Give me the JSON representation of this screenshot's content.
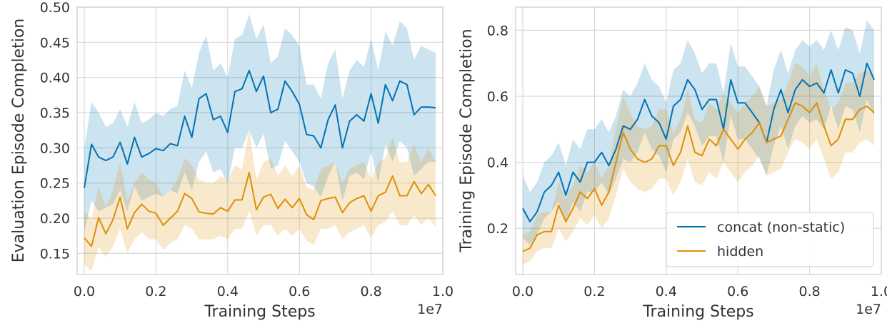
{
  "colors": {
    "concat": "#0173b2",
    "hidden": "#de8f05",
    "grid": "#d9d9d9",
    "axis": "#cccccc",
    "background": "#ffffff"
  },
  "chart_data": [
    {
      "type": "line",
      "xlabel": "Training Steps",
      "ylabel": "Evaluation Episode Completion",
      "x_multiplier": "1e7",
      "xlim": [
        -0.02,
        1.0
      ],
      "ylim": [
        0.12,
        0.5
      ],
      "grid": true,
      "xticks": [
        "0.0",
        "0.2",
        "0.4",
        "0.6",
        "0.8",
        "1.0"
      ],
      "yticks": [
        "0.15",
        "0.20",
        "0.25",
        "0.30",
        "0.35",
        "0.40",
        "0.45",
        "0.50"
      ],
      "x": [
        0.0,
        0.02,
        0.04,
        0.06,
        0.08,
        0.1,
        0.12,
        0.14,
        0.16,
        0.18,
        0.2,
        0.22,
        0.24,
        0.26,
        0.28,
        0.3,
        0.32,
        0.34,
        0.36,
        0.38,
        0.4,
        0.42,
        0.44,
        0.46,
        0.48,
        0.5,
        0.52,
        0.54,
        0.56,
        0.58,
        0.6,
        0.62,
        0.64,
        0.66,
        0.68,
        0.7,
        0.72,
        0.74,
        0.76,
        0.78,
        0.8,
        0.82,
        0.84,
        0.86,
        0.88,
        0.9,
        0.92,
        0.94,
        0.96,
        0.98
      ],
      "series": [
        {
          "name": "concat (non-static)",
          "color": "#0173b2",
          "values": [
            0.243,
            0.305,
            0.287,
            0.282,
            0.287,
            0.308,
            0.277,
            0.315,
            0.287,
            0.292,
            0.299,
            0.296,
            0.306,
            0.303,
            0.345,
            0.315,
            0.37,
            0.377,
            0.34,
            0.345,
            0.322,
            0.38,
            0.384,
            0.41,
            0.38,
            0.402,
            0.35,
            0.355,
            0.395,
            0.38,
            0.362,
            0.319,
            0.317,
            0.3,
            0.34,
            0.361,
            0.3,
            0.338,
            0.347,
            0.338,
            0.377,
            0.335,
            0.39,
            0.367,
            0.395,
            0.39,
            0.347,
            0.358,
            0.358,
            0.357
          ],
          "lower": [
            0.18,
            0.225,
            0.21,
            0.215,
            0.22,
            0.24,
            0.21,
            0.245,
            0.225,
            0.23,
            0.235,
            0.23,
            0.24,
            0.235,
            0.265,
            0.24,
            0.28,
            0.295,
            0.265,
            0.27,
            0.25,
            0.3,
            0.3,
            0.325,
            0.3,
            0.32,
            0.27,
            0.275,
            0.31,
            0.295,
            0.28,
            0.25,
            0.245,
            0.23,
            0.26,
            0.28,
            0.225,
            0.26,
            0.265,
            0.255,
            0.295,
            0.25,
            0.305,
            0.28,
            0.31,
            0.3,
            0.26,
            0.27,
            0.28,
            0.28
          ],
          "upper": [
            0.3,
            0.365,
            0.35,
            0.33,
            0.335,
            0.355,
            0.33,
            0.365,
            0.335,
            0.34,
            0.35,
            0.345,
            0.355,
            0.36,
            0.41,
            0.385,
            0.435,
            0.46,
            0.41,
            0.42,
            0.4,
            0.455,
            0.46,
            0.49,
            0.455,
            0.475,
            0.42,
            0.43,
            0.47,
            0.46,
            0.445,
            0.39,
            0.39,
            0.37,
            0.42,
            0.44,
            0.37,
            0.41,
            0.425,
            0.415,
            0.455,
            0.41,
            0.465,
            0.445,
            0.48,
            0.47,
            0.425,
            0.445,
            0.44,
            0.435
          ]
        },
        {
          "name": "hidden",
          "color": "#de8f05",
          "values": [
            0.172,
            0.16,
            0.201,
            0.178,
            0.198,
            0.23,
            0.185,
            0.208,
            0.22,
            0.21,
            0.207,
            0.19,
            0.2,
            0.21,
            0.235,
            0.228,
            0.209,
            0.207,
            0.206,
            0.215,
            0.21,
            0.226,
            0.226,
            0.265,
            0.212,
            0.23,
            0.234,
            0.214,
            0.227,
            0.215,
            0.228,
            0.205,
            0.198,
            0.225,
            0.228,
            0.23,
            0.208,
            0.222,
            0.228,
            0.232,
            0.21,
            0.232,
            0.237,
            0.26,
            0.232,
            0.232,
            0.252,
            0.235,
            0.248,
            0.232
          ],
          "lower": [
            0.135,
            0.125,
            0.16,
            0.145,
            0.16,
            0.185,
            0.15,
            0.17,
            0.18,
            0.17,
            0.17,
            0.155,
            0.165,
            0.17,
            0.19,
            0.185,
            0.17,
            0.17,
            0.17,
            0.175,
            0.17,
            0.185,
            0.185,
            0.21,
            0.175,
            0.19,
            0.19,
            0.175,
            0.185,
            0.175,
            0.185,
            0.168,
            0.162,
            0.185,
            0.185,
            0.19,
            0.17,
            0.18,
            0.185,
            0.19,
            0.172,
            0.19,
            0.195,
            0.21,
            0.19,
            0.19,
            0.205,
            0.19,
            0.2,
            0.188
          ],
          "upper": [
            0.21,
            0.2,
            0.245,
            0.215,
            0.24,
            0.28,
            0.225,
            0.25,
            0.265,
            0.255,
            0.25,
            0.23,
            0.24,
            0.255,
            0.285,
            0.275,
            0.255,
            0.25,
            0.25,
            0.26,
            0.255,
            0.275,
            0.27,
            0.325,
            0.255,
            0.28,
            0.285,
            0.26,
            0.275,
            0.26,
            0.275,
            0.245,
            0.24,
            0.27,
            0.275,
            0.28,
            0.25,
            0.27,
            0.275,
            0.28,
            0.255,
            0.28,
            0.285,
            0.315,
            0.28,
            0.28,
            0.305,
            0.28,
            0.3,
            0.28
          ]
        }
      ]
    },
    {
      "type": "line",
      "xlabel": "Training Steps",
      "ylabel": "Training Episode Completion",
      "x_multiplier": "1e7",
      "xlim": [
        -0.02,
        1.0
      ],
      "ylim": [
        0.06,
        0.87
      ],
      "grid": true,
      "legend_position": "bottom-right",
      "xticks": [
        "0.0",
        "0.2",
        "0.4",
        "0.6",
        "0.8",
        "1.0"
      ],
      "yticks": [
        "0.2",
        "0.4",
        "0.6",
        "0.8"
      ],
      "x": [
        0.0,
        0.02,
        0.04,
        0.06,
        0.08,
        0.1,
        0.12,
        0.14,
        0.16,
        0.18,
        0.2,
        0.22,
        0.24,
        0.26,
        0.28,
        0.3,
        0.32,
        0.34,
        0.36,
        0.38,
        0.4,
        0.42,
        0.44,
        0.46,
        0.48,
        0.5,
        0.52,
        0.54,
        0.56,
        0.58,
        0.6,
        0.62,
        0.64,
        0.66,
        0.68,
        0.7,
        0.72,
        0.74,
        0.76,
        0.78,
        0.8,
        0.82,
        0.84,
        0.86,
        0.88,
        0.9,
        0.92,
        0.94,
        0.96,
        0.98
      ],
      "series": [
        {
          "name": "concat (non-static)",
          "color": "#0173b2",
          "values": [
            0.26,
            0.22,
            0.25,
            0.31,
            0.33,
            0.37,
            0.3,
            0.37,
            0.34,
            0.4,
            0.4,
            0.43,
            0.39,
            0.44,
            0.51,
            0.5,
            0.53,
            0.59,
            0.54,
            0.52,
            0.47,
            0.57,
            0.59,
            0.65,
            0.62,
            0.56,
            0.59,
            0.59,
            0.5,
            0.65,
            0.58,
            0.58,
            0.55,
            0.52,
            0.46,
            0.56,
            0.62,
            0.55,
            0.62,
            0.65,
            0.63,
            0.64,
            0.61,
            0.68,
            0.61,
            0.68,
            0.67,
            0.6,
            0.7,
            0.65
          ],
          "lower": [
            0.17,
            0.15,
            0.18,
            0.23,
            0.25,
            0.28,
            0.22,
            0.28,
            0.25,
            0.31,
            0.31,
            0.34,
            0.3,
            0.35,
            0.41,
            0.4,
            0.43,
            0.49,
            0.44,
            0.42,
            0.37,
            0.47,
            0.49,
            0.55,
            0.51,
            0.45,
            0.48,
            0.48,
            0.4,
            0.54,
            0.47,
            0.47,
            0.44,
            0.41,
            0.36,
            0.45,
            0.51,
            0.44,
            0.51,
            0.54,
            0.52,
            0.53,
            0.5,
            0.57,
            0.5,
            0.57,
            0.56,
            0.49,
            0.59,
            0.54
          ],
          "upper": [
            0.36,
            0.31,
            0.34,
            0.4,
            0.42,
            0.46,
            0.39,
            0.47,
            0.44,
            0.5,
            0.5,
            0.53,
            0.49,
            0.54,
            0.62,
            0.6,
            0.64,
            0.7,
            0.65,
            0.63,
            0.58,
            0.68,
            0.7,
            0.77,
            0.73,
            0.67,
            0.7,
            0.7,
            0.61,
            0.76,
            0.69,
            0.69,
            0.66,
            0.63,
            0.57,
            0.68,
            0.74,
            0.67,
            0.74,
            0.77,
            0.75,
            0.77,
            0.74,
            0.8,
            0.74,
            0.81,
            0.8,
            0.73,
            0.83,
            0.8
          ]
        },
        {
          "name": "hidden",
          "color": "#de8f05",
          "values": [
            0.13,
            0.14,
            0.18,
            0.19,
            0.19,
            0.27,
            0.22,
            0.26,
            0.31,
            0.29,
            0.32,
            0.27,
            0.31,
            0.4,
            0.49,
            0.44,
            0.41,
            0.4,
            0.41,
            0.45,
            0.45,
            0.39,
            0.43,
            0.51,
            0.43,
            0.42,
            0.47,
            0.45,
            0.5,
            0.47,
            0.44,
            0.47,
            0.49,
            0.52,
            0.46,
            0.47,
            0.48,
            0.53,
            0.58,
            0.57,
            0.55,
            0.58,
            0.51,
            0.45,
            0.47,
            0.53,
            0.53,
            0.56,
            0.57,
            0.55
          ],
          "lower": [
            0.09,
            0.1,
            0.13,
            0.14,
            0.14,
            0.2,
            0.16,
            0.19,
            0.23,
            0.21,
            0.24,
            0.2,
            0.23,
            0.3,
            0.38,
            0.34,
            0.32,
            0.31,
            0.32,
            0.35,
            0.35,
            0.3,
            0.34,
            0.41,
            0.34,
            0.33,
            0.37,
            0.35,
            0.4,
            0.37,
            0.34,
            0.37,
            0.39,
            0.42,
            0.36,
            0.37,
            0.38,
            0.43,
            0.47,
            0.46,
            0.44,
            0.47,
            0.41,
            0.35,
            0.37,
            0.43,
            0.43,
            0.46,
            0.47,
            0.45
          ],
          "upper": [
            0.18,
            0.19,
            0.24,
            0.25,
            0.25,
            0.34,
            0.29,
            0.33,
            0.39,
            0.37,
            0.4,
            0.35,
            0.39,
            0.5,
            0.6,
            0.55,
            0.51,
            0.5,
            0.51,
            0.56,
            0.56,
            0.49,
            0.53,
            0.62,
            0.53,
            0.52,
            0.58,
            0.56,
            0.61,
            0.58,
            0.55,
            0.58,
            0.6,
            0.63,
            0.57,
            0.58,
            0.59,
            0.64,
            0.7,
            0.69,
            0.66,
            0.7,
            0.62,
            0.56,
            0.58,
            0.64,
            0.64,
            0.67,
            0.68,
            0.66
          ]
        }
      ]
    }
  ]
}
